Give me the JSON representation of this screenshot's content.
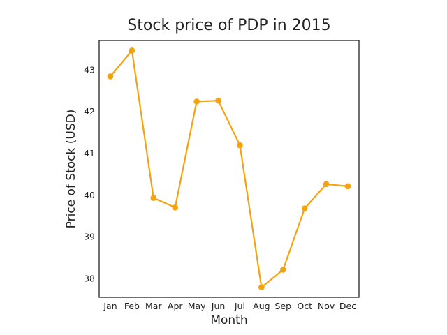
{
  "chart_data": {
    "type": "line",
    "title": "Stock price of PDP in 2015",
    "xlabel": "Month",
    "ylabel": "Price of Stock (USD)",
    "categories": [
      "Jan",
      "Feb",
      "Mar",
      "Apr",
      "May",
      "Jun",
      "Jul",
      "Aug",
      "Sep",
      "Oct",
      "Nov",
      "Dec"
    ],
    "series": [
      {
        "values": [
          42.84,
          43.46,
          39.93,
          39.7,
          42.24,
          42.26,
          41.19,
          37.79,
          38.21,
          39.68,
          40.26,
          40.21
        ],
        "color": "#f5a20f",
        "marker": "circle"
      }
    ],
    "ylim": [
      37.55,
      43.7
    ],
    "yticks": [
      38,
      39,
      40,
      41,
      42,
      43
    ],
    "grid": false,
    "legend": "none"
  }
}
